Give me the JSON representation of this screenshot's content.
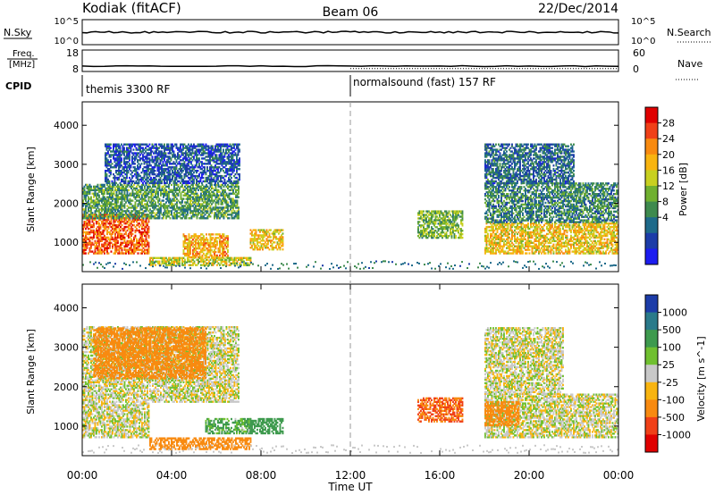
{
  "header": {
    "radar": "Kodiak (fitACF)",
    "beam": "Beam 06",
    "date": "22/Dec/2014"
  },
  "noise_panel": {
    "left_label": "N.Sky",
    "right_label": "N.Search",
    "left_ticks": [
      "10^5",
      "10^0"
    ],
    "right_ticks": [
      "10^5",
      "10^0"
    ]
  },
  "freq_panel": {
    "left_label_line1": "Freq.",
    "left_label_line2": "[MHz]",
    "right_label": "Nave",
    "left_ticks": [
      "18",
      "8"
    ],
    "right_ticks": [
      "60",
      "0"
    ]
  },
  "cpid_panel": {
    "label": "CPID",
    "segment1": "themis 3300 RF",
    "segment2": "normalsound (fast) 157 RF"
  },
  "axes": {
    "ylabel": "Slant Range [km]",
    "yticks": [
      "4000",
      "3000",
      "2000",
      "1000"
    ],
    "xticks": [
      "00:00",
      "04:00",
      "08:00",
      "12:00",
      "16:00",
      "20:00",
      "00:00"
    ],
    "xlabel": "Time UT"
  },
  "power_colorbar": {
    "label": "Power [dB]",
    "ticks": [
      "28",
      "24",
      "20",
      "16",
      "12",
      "8",
      "4"
    ],
    "colors": [
      "#e00000",
      "#f04018",
      "#f88a10",
      "#f8b410",
      "#c8d020",
      "#70b030",
      "#3e8a4e",
      "#1e6a8a",
      "#1c3ca8",
      "#1c1cf0"
    ]
  },
  "velocity_colorbar": {
    "label": "Velocity [m s^-1]",
    "ticks": [
      "1000",
      "500",
      "100",
      "25",
      "-25",
      "-100",
      "-500",
      "-1000"
    ],
    "colors": [
      "#1c3ca8",
      "#2a7a8a",
      "#3e9a4e",
      "#70c030",
      "#c8c8c8",
      "#f8b410",
      "#f88a10",
      "#f04018",
      "#e00000"
    ]
  },
  "chart_data": {
    "type": "heatmap",
    "title": "Kodiak (fitACF) Beam 06 22/Dec/2014",
    "xlabel": "Time UT",
    "ylabel": "Slant Range [km]",
    "xlim": [
      0,
      24
    ],
    "ylim": [
      250,
      4600
    ],
    "x_unit": "hours UT",
    "mode_change_hour": 12.0,
    "cpid_modes": [
      {
        "name": "themis 3300 RF",
        "start_hour": 0,
        "end_hour": 12
      },
      {
        "name": "normalsound (fast) 157 RF",
        "start_hour": 12,
        "end_hour": 24
      }
    ],
    "freq_level_mhz": 10.5,
    "nave_level": 8,
    "power_regions_db": [
      {
        "t_start": 0.0,
        "t_end": 3.0,
        "r_start": 700,
        "r_end": 1700,
        "value": 26
      },
      {
        "t_start": 0.0,
        "t_end": 7.0,
        "r_start": 1600,
        "r_end": 2500,
        "value": 12
      },
      {
        "t_start": 1.0,
        "t_end": 7.0,
        "r_start": 2500,
        "r_end": 3500,
        "value": 6
      },
      {
        "t_start": 4.5,
        "t_end": 6.5,
        "r_start": 600,
        "r_end": 1200,
        "value": 22
      },
      {
        "t_start": 3.0,
        "t_end": 7.5,
        "r_start": 400,
        "r_end": 600,
        "value": 18
      },
      {
        "t_start": 7.5,
        "t_end": 9.0,
        "r_start": 800,
        "r_end": 1300,
        "value": 20
      },
      {
        "t_start": 15.0,
        "t_end": 17.0,
        "r_start": 1100,
        "r_end": 1800,
        "value": 14
      },
      {
        "t_start": 18.0,
        "t_end": 24.0,
        "r_start": 700,
        "r_end": 1500,
        "value": 20
      },
      {
        "t_start": 18.0,
        "t_end": 24.0,
        "r_start": 1500,
        "r_end": 2500,
        "value": 10
      },
      {
        "t_start": 18.0,
        "t_end": 22.0,
        "r_start": 2500,
        "r_end": 3500,
        "value": 8
      }
    ],
    "velocity_regions_ms": [
      {
        "t_start": 0.0,
        "t_end": 3.0,
        "r_start": 700,
        "r_end": 1600,
        "value": 0
      },
      {
        "t_start": 0.0,
        "t_end": 7.0,
        "r_start": 1600,
        "r_end": 3500,
        "value": 0
      },
      {
        "t_start": 0.5,
        "t_end": 5.5,
        "r_start": 2200,
        "r_end": 3500,
        "value": -300
      },
      {
        "t_start": 3.0,
        "t_end": 7.5,
        "r_start": 400,
        "r_end": 700,
        "value": -300
      },
      {
        "t_start": 5.5,
        "t_end": 7.5,
        "r_start": 800,
        "r_end": 1200,
        "value": 80
      },
      {
        "t_start": 7.5,
        "t_end": 9.0,
        "r_start": 800,
        "r_end": 1200,
        "value": 200
      },
      {
        "t_start": 15.0,
        "t_end": 17.0,
        "r_start": 1100,
        "r_end": 1700,
        "value": -500
      },
      {
        "t_start": 18.0,
        "t_end": 24.0,
        "r_start": 700,
        "r_end": 1800,
        "value": 0
      },
      {
        "t_start": 18.0,
        "t_end": 21.5,
        "r_start": 1800,
        "r_end": 3500,
        "value": 0
      },
      {
        "t_start": 18.0,
        "t_end": 19.5,
        "r_start": 1000,
        "r_end": 1600,
        "value": -200
      }
    ]
  }
}
